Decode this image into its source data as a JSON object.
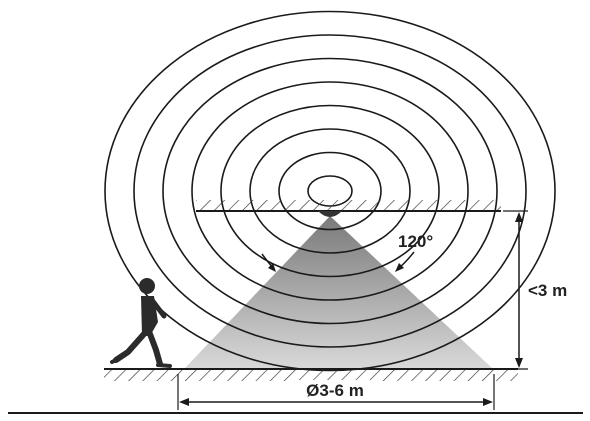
{
  "diagram": {
    "angle_label": "120°",
    "height_label": "<3 m",
    "diameter_label": "Ø3-6 m",
    "detection_rings": 8,
    "colors": {
      "line": "#1a1a1a",
      "cone_top": "#7a7a7a",
      "cone_bottom": "#d8d8d8",
      "person": "#2b2b2b",
      "background": "#ffffff"
    },
    "icons": [
      "pir-sensor-icon",
      "walking-person-icon",
      "detection-angle-arrow-icon"
    ]
  }
}
